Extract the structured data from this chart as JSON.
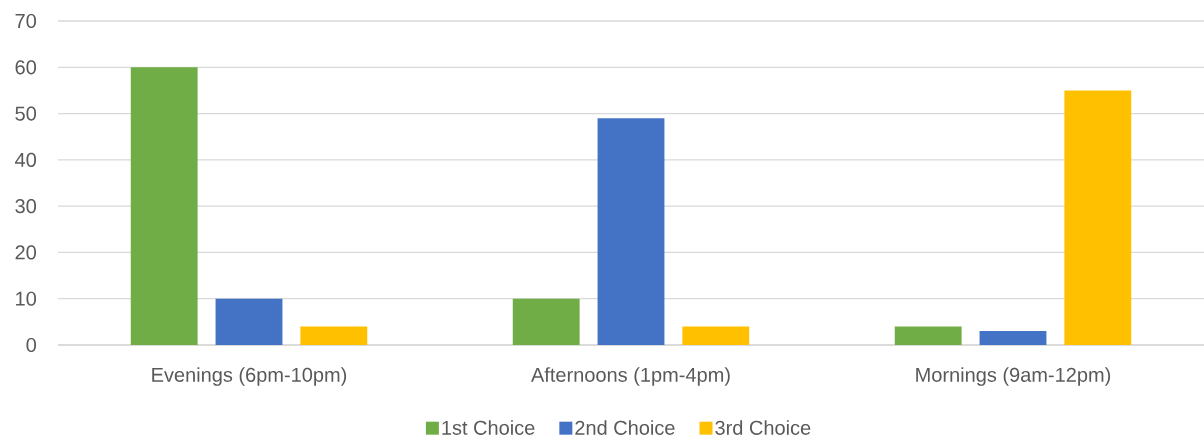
{
  "chart_data": {
    "type": "bar",
    "categories": [
      "Evenings (6pm-10pm)",
      "Afternoons (1pm-4pm)",
      "Mornings (9am-12pm)"
    ],
    "series": [
      {
        "name": "1st Choice",
        "color": "#70ad47",
        "values": [
          60,
          10,
          4
        ]
      },
      {
        "name": "2nd Choice",
        "color": "#4472c4",
        "values": [
          10,
          49,
          3
        ]
      },
      {
        "name": "3rd Choice",
        "color": "#ffc000",
        "values": [
          4,
          4,
          55
        ]
      }
    ],
    "ylim": [
      0,
      70
    ],
    "yticks": [
      0,
      10,
      20,
      30,
      40,
      50,
      60,
      70
    ],
    "grid": "y",
    "legend": "bottom"
  }
}
